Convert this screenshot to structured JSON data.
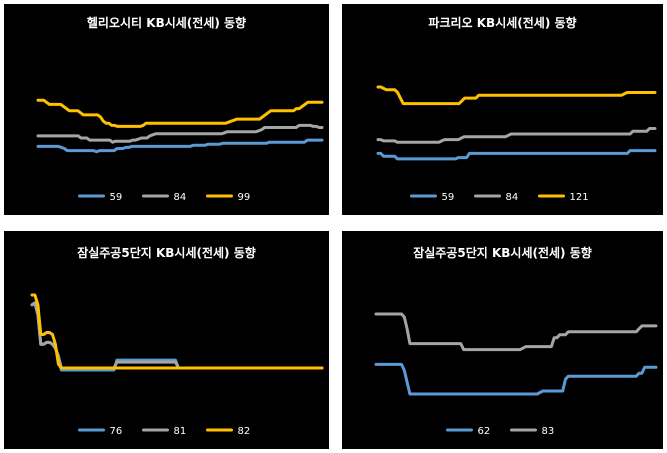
{
  "chart_data": [
    {
      "type": "line",
      "title": "헬리오시티 KB시세(전세) 동향",
      "xlabel": "",
      "ylabel": "",
      "grid": false,
      "legend": "bottom",
      "series": [
        {
          "name": "59",
          "color": "#5B9BD5",
          "values": [
            26,
            26,
            26,
            26,
            26,
            26,
            26,
            26,
            25.5,
            25,
            24,
            24,
            24,
            24,
            24,
            24,
            24,
            24,
            24,
            24,
            23.5,
            24,
            24,
            24,
            24,
            24,
            24,
            25,
            25,
            25,
            25.5,
            25.5,
            26,
            26,
            26,
            26,
            26,
            26,
            26,
            26,
            26,
            26,
            26,
            26,
            26,
            26,
            26,
            26,
            26,
            26,
            26,
            26,
            26,
            26.5,
            26.5,
            26.5,
            26.5,
            26.5,
            27,
            27,
            27,
            27,
            27,
            27.5,
            27.5,
            27.5,
            27.5,
            27.5,
            27.5,
            27.5,
            27.5,
            27.5,
            27.5,
            27.5,
            27.5,
            27.5,
            27.5,
            27.5,
            27.5,
            28,
            28,
            28,
            28,
            28,
            28,
            28,
            28,
            28,
            28,
            28,
            28,
            28,
            29,
            29,
            29,
            29,
            29,
            29
          ]
        },
        {
          "name": "84",
          "color": "#A5A5A5",
          "values": [
            31,
            31,
            31,
            31,
            31,
            31,
            31,
            31,
            31,
            31,
            31,
            31,
            31,
            31,
            31,
            30,
            30,
            30,
            29,
            29,
            29,
            29,
            29,
            29,
            29,
            29,
            28,
            28.5,
            28.5,
            28.5,
            28.5,
            28.5,
            28.5,
            29,
            29,
            29.5,
            30,
            30,
            30,
            31,
            31.5,
            32,
            32,
            32,
            32,
            32,
            32,
            32,
            32,
            32,
            32,
            32,
            32,
            32,
            32,
            32,
            32,
            32,
            32,
            32,
            32,
            32,
            32,
            32,
            32,
            32.5,
            33,
            33,
            33,
            33,
            33,
            33,
            33,
            33,
            33,
            33,
            33,
            33.5,
            34,
            35,
            35,
            35,
            35,
            35,
            35,
            35,
            35,
            35,
            35,
            35,
            35,
            36,
            36,
            36,
            36,
            36,
            35.5,
            35.5,
            35,
            35
          ]
        },
        {
          "name": "99",
          "color": "#FFC000",
          "values": [
            48,
            48,
            48,
            47,
            46,
            46,
            46,
            46,
            46,
            45,
            44,
            43,
            43,
            43,
            43,
            42,
            41,
            41,
            41,
            41,
            41,
            41,
            40,
            38,
            37,
            37,
            36,
            36,
            35.5,
            35.5,
            35.5,
            35.5,
            35.5,
            35.5,
            35.5,
            35.5,
            35.5,
            36,
            37,
            37,
            37,
            37,
            37,
            37,
            37,
            37,
            37,
            37,
            37,
            37,
            37,
            37,
            37,
            37,
            37,
            37,
            37,
            37,
            37,
            37,
            37,
            37,
            37,
            37,
            37,
            37,
            37,
            37.5,
            38,
            38.5,
            39,
            39,
            39,
            39,
            39,
            39,
            39,
            39,
            39,
            40,
            41,
            42,
            43,
            43,
            43,
            43,
            43,
            43,
            43,
            43,
            43,
            44,
            44,
            45,
            46,
            47,
            47,
            47,
            47,
            47,
            47
          ]
        }
      ]
    },
    {
      "type": "line",
      "title": "파크리오 KB시세(전세) 동향",
      "xlabel": "",
      "ylabel": "",
      "grid": false,
      "legend": "bottom",
      "series": [
        {
          "name": "59",
          "color": "#5B9BD5",
          "values": [
            26,
            26,
            25,
            25,
            25,
            25,
            25,
            24,
            24,
            24,
            24,
            24,
            24,
            24,
            24,
            24,
            24,
            24,
            24,
            24,
            24,
            24,
            24,
            24,
            24,
            24,
            24,
            24,
            24,
            24.5,
            24.5,
            24.5,
            24.5,
            26,
            26,
            26,
            26,
            26,
            26,
            26,
            26,
            26,
            26,
            26,
            26,
            26,
            26,
            26,
            26,
            26,
            26,
            26,
            26,
            26,
            26,
            26,
            26,
            26,
            26,
            26,
            26,
            26,
            26,
            26,
            26,
            26,
            26,
            26,
            26,
            26,
            26,
            26,
            26,
            26,
            26,
            26,
            26,
            26,
            26,
            26,
            26,
            26,
            26,
            26,
            26,
            26,
            26,
            26,
            26,
            26,
            26,
            27,
            27,
            27,
            27,
            27,
            27,
            27,
            27,
            27,
            27
          ]
        },
        {
          "name": "84",
          "color": "#A5A5A5",
          "values": [
            31,
            31,
            30.5,
            30.5,
            30.5,
            30.5,
            30.5,
            30,
            30,
            30,
            30,
            30,
            30,
            30,
            30,
            30,
            30,
            30,
            30,
            30,
            30,
            30,
            30,
            30.5,
            31,
            31,
            31,
            31,
            31,
            31,
            31.5,
            32,
            32,
            32,
            32,
            32,
            32,
            32,
            32,
            32,
            32,
            32,
            32,
            32,
            32,
            32,
            32,
            32.5,
            33,
            33,
            33,
            33,
            33,
            33,
            33,
            33,
            33,
            33,
            33,
            33,
            33,
            33,
            33,
            33,
            33,
            33,
            33,
            33,
            33,
            33,
            33,
            33,
            33,
            33,
            33,
            33,
            33,
            33,
            33,
            33,
            33,
            33,
            33,
            33,
            33,
            33,
            33,
            33,
            33,
            33,
            33,
            33,
            34,
            34,
            34,
            34,
            34,
            34,
            35,
            35,
            35
          ]
        },
        {
          "name": "121",
          "color": "#FFC000",
          "values": [
            50,
            50,
            49.5,
            49,
            49,
            49,
            49,
            48,
            46,
            44,
            44,
            44,
            44,
            44,
            44,
            44,
            44,
            44,
            44,
            44,
            44,
            44,
            44,
            44,
            44,
            44,
            44,
            44,
            44,
            44,
            45,
            46,
            46,
            46,
            46,
            46,
            47,
            47,
            47,
            47,
            47,
            47,
            47,
            47,
            47,
            47,
            47,
            47,
            47,
            47,
            47,
            47,
            47,
            47,
            47,
            47,
            47,
            47,
            47,
            47,
            47,
            47,
            47,
            47,
            47,
            47,
            47,
            47,
            47,
            47,
            47,
            47,
            47,
            47,
            47,
            47,
            47,
            47,
            47,
            47,
            47,
            47,
            47,
            47,
            47,
            47,
            47,
            47,
            47.5,
            48,
            48,
            48,
            48,
            48,
            48,
            48,
            48,
            48,
            48,
            48
          ]
        }
      ]
    },
    {
      "type": "line",
      "title": "잠실주공5단지 KB시세(전세) 동향",
      "xlabel": "",
      "ylabel": "",
      "grid": false,
      "legend": "bottom",
      "series": [
        {
          "name": "76",
          "color": "#5B9BD5",
          "values": [
            60,
            61,
            55,
            40,
            40,
            41,
            41,
            40,
            38,
            34,
            27,
            27,
            27,
            27,
            27,
            27,
            27,
            27,
            27,
            27,
            27,
            27,
            27,
            27,
            27,
            27,
            27,
            27,
            27,
            32,
            32,
            32,
            32,
            32,
            32,
            32,
            32,
            32,
            32,
            32,
            32,
            32,
            32,
            32,
            32,
            32,
            32,
            32,
            32,
            32,
            28,
            28,
            28,
            28,
            28,
            28,
            28,
            28,
            28,
            28,
            28,
            28,
            28,
            28,
            28,
            28,
            28,
            28,
            28,
            28,
            28,
            28,
            28,
            28,
            28,
            28,
            28,
            28,
            28,
            28,
            28,
            28,
            28,
            28,
            28,
            28,
            28,
            28,
            28,
            28,
            28,
            28,
            28,
            28,
            28,
            28,
            28,
            28,
            28,
            28
          ]
        },
        {
          "name": "81",
          "color": "#A5A5A5",
          "values": [
            60,
            61,
            55,
            40,
            40,
            41,
            41,
            40,
            38,
            34,
            28,
            28,
            28,
            28,
            28,
            28,
            28,
            28,
            28,
            28,
            28,
            28,
            28,
            28,
            28,
            28,
            28,
            28,
            28,
            31,
            31,
            31,
            31,
            31,
            31,
            31,
            31,
            31,
            31,
            31,
            31,
            31,
            31,
            31,
            31,
            31,
            31,
            31,
            31,
            31,
            28,
            28,
            28,
            28,
            28,
            28,
            28,
            28,
            28,
            28,
            28,
            28,
            28,
            28,
            28,
            28,
            28,
            28,
            28,
            28,
            28,
            28,
            28,
            28,
            28,
            28,
            28,
            28,
            28,
            28,
            28,
            28,
            28,
            28,
            28,
            28,
            28,
            28,
            28,
            28,
            28,
            28,
            28,
            28,
            28,
            28,
            28,
            28,
            28,
            28
          ]
        },
        {
          "name": "82",
          "color": "#FFC000",
          "values": [
            65,
            65,
            60,
            45,
            45,
            46,
            46,
            45,
            40,
            30,
            28,
            28,
            28,
            28,
            28,
            28,
            28,
            28,
            28,
            28,
            28,
            28,
            28,
            28,
            28,
            28,
            28,
            28,
            28,
            28,
            28,
            28,
            28,
            28,
            28,
            28,
            28,
            28,
            28,
            28,
            28,
            28,
            28,
            28,
            28,
            28,
            28,
            28,
            28,
            28,
            28,
            28,
            28,
            28,
            28,
            28,
            28,
            28,
            28,
            28,
            28,
            28,
            28,
            28,
            28,
            28,
            28,
            28,
            28,
            28,
            28,
            28,
            28,
            28,
            28,
            28,
            28,
            28,
            28,
            28,
            28,
            28,
            28,
            28,
            28,
            28,
            28,
            28,
            28,
            28,
            28,
            28,
            28,
            28,
            28,
            28,
            28,
            28,
            28,
            28
          ]
        }
      ]
    },
    {
      "type": "line",
      "title": "잠실주공5단지 KB시세(전세) 동향",
      "xlabel": "",
      "ylabel": "",
      "grid": false,
      "legend": "bottom",
      "series": [
        {
          "name": "62",
          "color": "#5B9BD5",
          "values": [
            38,
            38,
            38,
            38,
            38,
            38,
            38,
            38,
            38,
            38,
            36,
            32,
            28,
            28,
            28,
            28,
            28,
            28,
            28,
            28,
            28,
            28,
            28,
            28,
            28,
            28,
            28,
            28,
            28,
            28,
            28,
            28,
            28,
            28,
            28,
            28,
            28,
            28,
            28,
            28,
            28,
            28,
            28,
            28,
            28,
            28,
            28,
            28,
            28,
            28,
            28,
            28,
            28,
            28,
            28,
            28,
            28,
            28,
            28.5,
            29,
            29,
            29,
            29,
            29,
            29,
            29,
            29,
            33,
            34,
            34,
            34,
            34,
            34,
            34,
            34,
            34,
            34,
            34,
            34,
            34,
            34,
            34,
            34,
            34,
            34,
            34,
            34,
            34,
            34,
            34,
            34,
            34,
            34,
            35,
            35,
            37,
            37,
            37,
            37,
            37
          ]
        },
        {
          "name": "83",
          "color": "#A5A5A5",
          "values": [
            55,
            55,
            55,
            55,
            55,
            55,
            55,
            55,
            55,
            55,
            54,
            50,
            45,
            45,
            45,
            45,
            45,
            45,
            45,
            45,
            45,
            45,
            45,
            45,
            45,
            45,
            45,
            45,
            45,
            45,
            45,
            43,
            43,
            43,
            43,
            43,
            43,
            43,
            43,
            43,
            43,
            43,
            43,
            43,
            43,
            43,
            43,
            43,
            43,
            43,
            43,
            43,
            43.5,
            44,
            44,
            44,
            44,
            44,
            44,
            44,
            44,
            44,
            44,
            47,
            47,
            48,
            48,
            48,
            49,
            49,
            49,
            49,
            49,
            49,
            49,
            49,
            49,
            49,
            49,
            49,
            49,
            49,
            49,
            49,
            49,
            49,
            49,
            49,
            49,
            49,
            49,
            49,
            49,
            50,
            51,
            51,
            51,
            51,
            51,
            51
          ]
        }
      ]
    }
  ]
}
